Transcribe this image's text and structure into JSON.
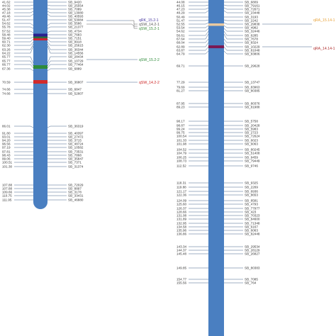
{
  "figure": {
    "chromosomes": [
      {
        "id": "left",
        "bar_color": "#4a7fc1",
        "markers": [
          {
            "pos": "41.62",
            "name": "SB_9420"
          },
          {
            "pos": "44.02",
            "name": "SB_25554"
          },
          {
            "pos": "45.38",
            "name": "SB_7089"
          },
          {
            "pos": "47.18",
            "name": "SB_13080"
          },
          {
            "pos": "49.46",
            "name": "SB_40593"
          },
          {
            "pos": "51.47",
            "name": "SB_53084"
          },
          {
            "pos": "54.62",
            "name": "SB_5586"
          },
          {
            "pos": "55.78",
            "name": "SB_21377"
          },
          {
            "pos": "57.52",
            "name": "SB_4734"
          },
          {
            "pos": "58.48",
            "name": "SB_7683"
          },
          {
            "pos": "59.40",
            "name": "SB_7151"
          },
          {
            "pos": "60.71",
            "name": "SB_9918"
          },
          {
            "pos": "62.30",
            "name": "SB_25615"
          },
          {
            "pos": "63.26",
            "name": "SB_36344"
          },
          {
            "pos": "64.22",
            "name": "SB_14556"
          },
          {
            "pos": "65.77",
            "name": "SB_28434"
          },
          {
            "pos": "65.77",
            "name": "SB_10729"
          },
          {
            "pos": "66.77",
            "name": "SB_77464"
          },
          {
            "pos": "67.36",
            "name": "SB_6889"
          },
          {
            "pos": "70.59",
            "name": "SB_36807"
          },
          {
            "pos": "74.66",
            "name": "SB_6847"
          },
          {
            "pos": "74.66",
            "name": "SB_52607"
          },
          {
            "pos": "86.01",
            "name": "SB_36319"
          },
          {
            "pos": "91.80",
            "name": "SB_40397"
          },
          {
            "pos": "93.01",
            "name": "SB_27472"
          },
          {
            "pos": "94.20",
            "name": "SB_3715"
          },
          {
            "pos": "96.56",
            "name": "SB_48724"
          },
          {
            "pos": "97.19",
            "name": "SB_10582"
          },
          {
            "pos": "97.81",
            "name": "SB_73531"
          },
          {
            "pos": "98.43",
            "name": "SB_7868"
          },
          {
            "pos": "99.06",
            "name": "SB_35847"
          },
          {
            "pos": "100.51",
            "name": "SB_7371"
          },
          {
            "pos": "101.30",
            "name": "SB_31374"
          },
          {
            "pos": "107.88",
            "name": "SB_72029"
          },
          {
            "pos": "107.88",
            "name": "SB_8897"
          },
          {
            "pos": "109.66",
            "name": "SB_3178"
          },
          {
            "pos": "110.75",
            "name": "SB_33431"
          },
          {
            "pos": "111.95",
            "name": "SB_46880"
          }
        ],
        "qtls": [
          {
            "label": "qRK_15.2-1",
            "color": "#4a3aa0"
          },
          {
            "label": "qSW_14.2-1",
            "color": "#555555"
          },
          {
            "label": "qSW_15.2-1",
            "color": "#3a8a3a"
          },
          {
            "label": "qSW_15.2-2",
            "color": "#2e8b3a"
          },
          {
            "label": "qSW_14.2-2",
            "color": "#cc2222"
          }
        ]
      },
      {
        "id": "right",
        "bar_color": "#4a7fc1",
        "markers": [
          {
            "pos": "44.08",
            "name": "SB_6809"
          },
          {
            "pos": "46.15",
            "name": "SB_79161"
          },
          {
            "pos": "47.23",
            "name": "SB_72671"
          },
          {
            "pos": "48.29",
            "name": "SB_23448"
          },
          {
            "pos": "50.49",
            "name": "SB_3193"
          },
          {
            "pos": "51.47",
            "name": "SB_2242"
          },
          {
            "pos": "52.55",
            "name": "SB_29838"
          },
          {
            "pos": "53.54",
            "name": "SB_4982"
          },
          {
            "pos": "54.62",
            "name": "SB_32446"
          },
          {
            "pos": "56.61",
            "name": "SB_6285"
          },
          {
            "pos": "67.64",
            "name": "SB_7678"
          },
          {
            "pos": "68.04",
            "name": "SB_8324"
          },
          {
            "pos": "62.89",
            "name": "SB_10229"
          },
          {
            "pos": "63.87",
            "name": "SB_81048"
          },
          {
            "pos": "64.79",
            "name": "SB_83806"
          },
          {
            "pos": "69.71",
            "name": "SB_29628"
          },
          {
            "pos": "77.29",
            "name": "SB_13747"
          },
          {
            "pos": "79.69",
            "name": "SB_83963"
          },
          {
            "pos": "81.27",
            "name": "SB_80385"
          },
          {
            "pos": "87.95",
            "name": "SB_80376"
          },
          {
            "pos": "89.23",
            "name": "SB_81988"
          },
          {
            "pos": "98.17",
            "name": "SB_5758"
          },
          {
            "pos": "98.87",
            "name": "SB_20428"
          },
          {
            "pos": "99.24",
            "name": "SB_5983"
          },
          {
            "pos": "99.75",
            "name": "SB_2723"
          },
          {
            "pos": "100.54",
            "name": "SB_72624"
          },
          {
            "pos": "101.33",
            "name": "SB_6023"
          },
          {
            "pos": "101.98",
            "name": "SB_6063"
          },
          {
            "pos": "104.52",
            "name": "SB_80245"
          },
          {
            "pos": "104.79",
            "name": "SB_51408"
          },
          {
            "pos": "106.25",
            "name": "SB_9459"
          },
          {
            "pos": "108.73",
            "name": "SB_79449"
          },
          {
            "pos": "112.52",
            "name": "SB_9746"
          },
          {
            "pos": "118.31",
            "name": "SB_9325"
          },
          {
            "pos": "119.88",
            "name": "SB_2269"
          },
          {
            "pos": "121.17",
            "name": "SB_6936"
          },
          {
            "pos": "122.36",
            "name": "SB_8653"
          },
          {
            "pos": "124.09",
            "name": "SB_8581"
          },
          {
            "pos": "125.60",
            "name": "SB_4793"
          },
          {
            "pos": "126.37",
            "name": "SB_77977"
          },
          {
            "pos": "128.66",
            "name": "SB_423"
          },
          {
            "pos": "131.08",
            "name": "SB_70323"
          },
          {
            "pos": "131.89",
            "name": "SB_84600"
          },
          {
            "pos": "132.95",
            "name": "SB_71348"
          },
          {
            "pos": "134.58",
            "name": "SB_6167"
          },
          {
            "pos": "135.96",
            "name": "SB_6063"
          },
          {
            "pos": "136.86",
            "name": "SB_82448"
          },
          {
            "pos": "143.34",
            "name": "SB_29534"
          },
          {
            "pos": "144.37",
            "name": "SB_28129"
          },
          {
            "pos": "145.48",
            "name": "SB_26827"
          },
          {
            "pos": "149.85",
            "name": "SB_80383"
          },
          {
            "pos": "154.77",
            "name": "SB_7085"
          },
          {
            "pos": "155.56",
            "name": "SB_764"
          }
        ],
        "qtls": [
          {
            "label": "qRA_15.14-1",
            "color": "#e8a33a"
          },
          {
            "label": "qRA_14.14-1",
            "color": "#b03030"
          }
        ]
      }
    ]
  }
}
